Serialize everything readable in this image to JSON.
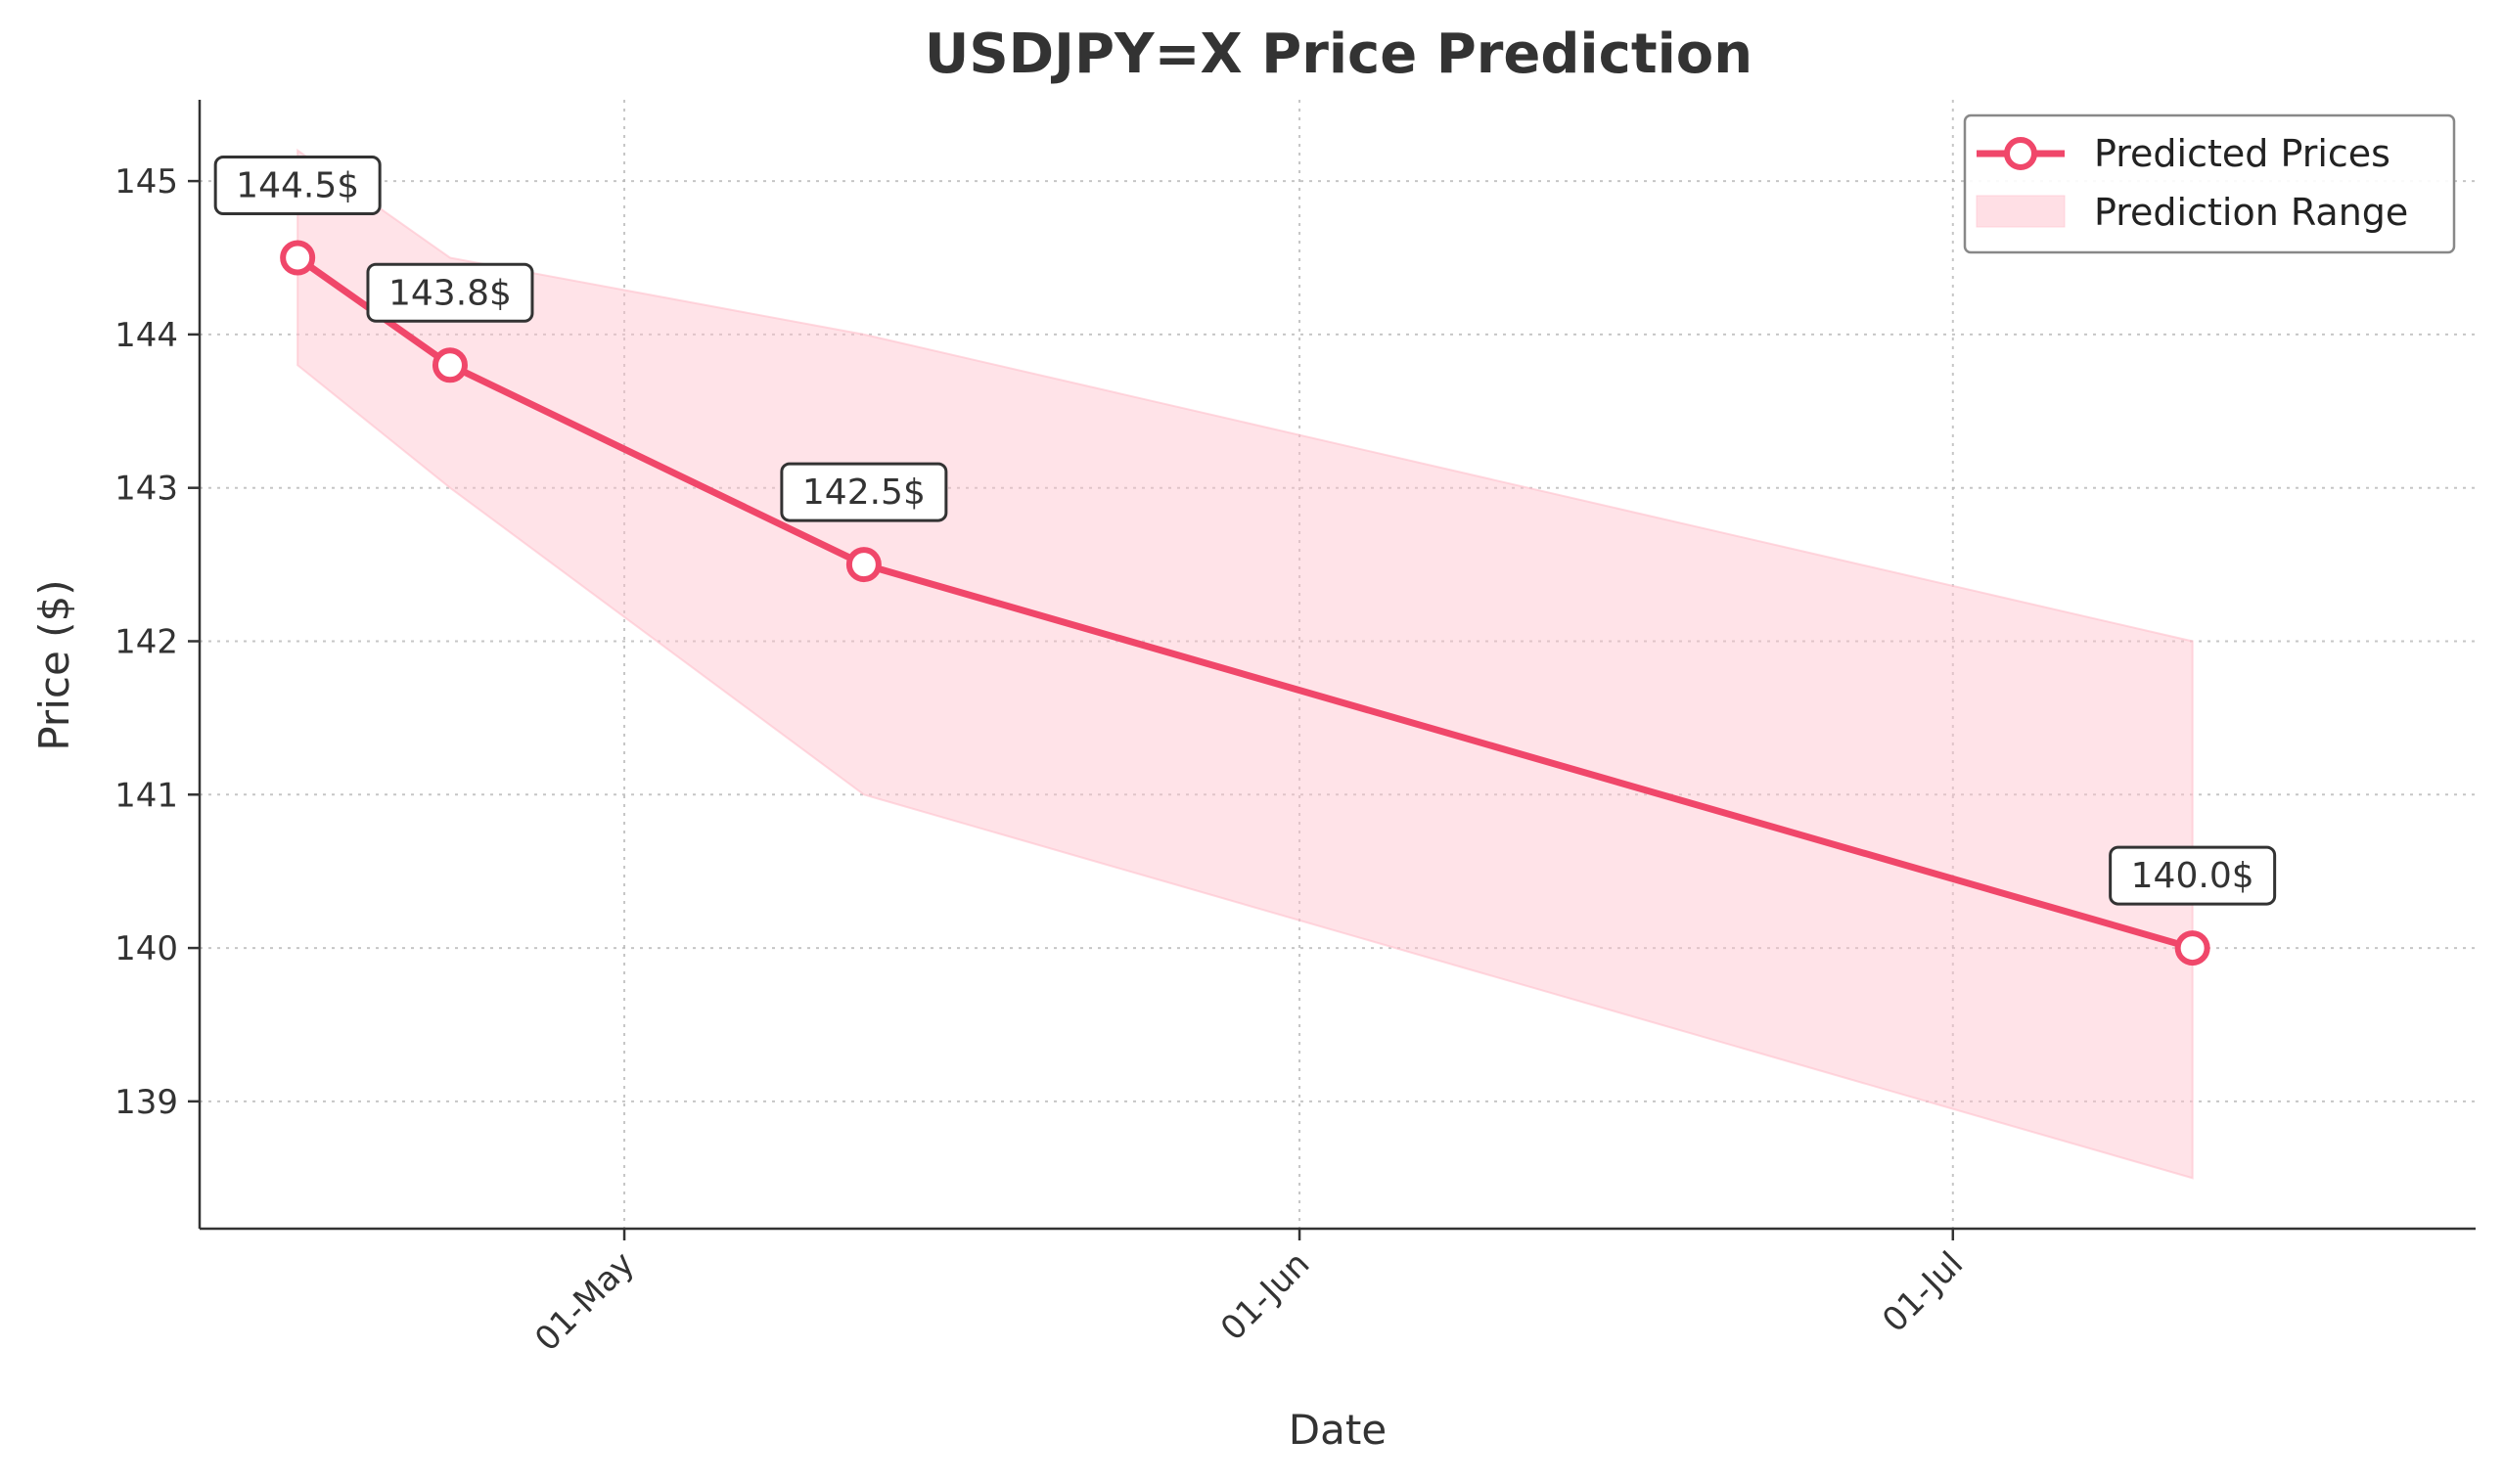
{
  "chart_data": {
    "type": "line",
    "title": "USDJPY=X Price Prediction",
    "xlabel": "Date",
    "ylabel": "Price ($)",
    "x": [
      "2024-04-16",
      "2024-04-23",
      "2024-05-12",
      "2024-07-12"
    ],
    "series": [
      {
        "name": "Predicted Prices",
        "values": [
          144.5,
          143.8,
          142.5,
          140.0
        ],
        "labels": [
          "144.5$",
          "143.8$",
          "142.5$",
          "140.0$"
        ],
        "color": "#f0476a"
      }
    ],
    "range": {
      "name": "Prediction Range",
      "upper": [
        145.2,
        144.5,
        144.0,
        142.0
      ],
      "lower": [
        143.8,
        143.0,
        141.0,
        138.5
      ],
      "color": "#ffc0cb"
    },
    "x_ticks": [
      {
        "date": "2024-05-01",
        "label": "01-May"
      },
      {
        "date": "2024-06-01",
        "label": "01-Jun"
      },
      {
        "date": "2024-07-01",
        "label": "01-Jul"
      }
    ],
    "y_ticks": [
      139,
      140,
      141,
      142,
      143,
      144,
      145
    ],
    "xlim": [
      "2024-04-11.5",
      "2024-07-25"
    ],
    "ylim": [
      138.17,
      145.53
    ],
    "grid": true,
    "legend_position": "top-right"
  }
}
